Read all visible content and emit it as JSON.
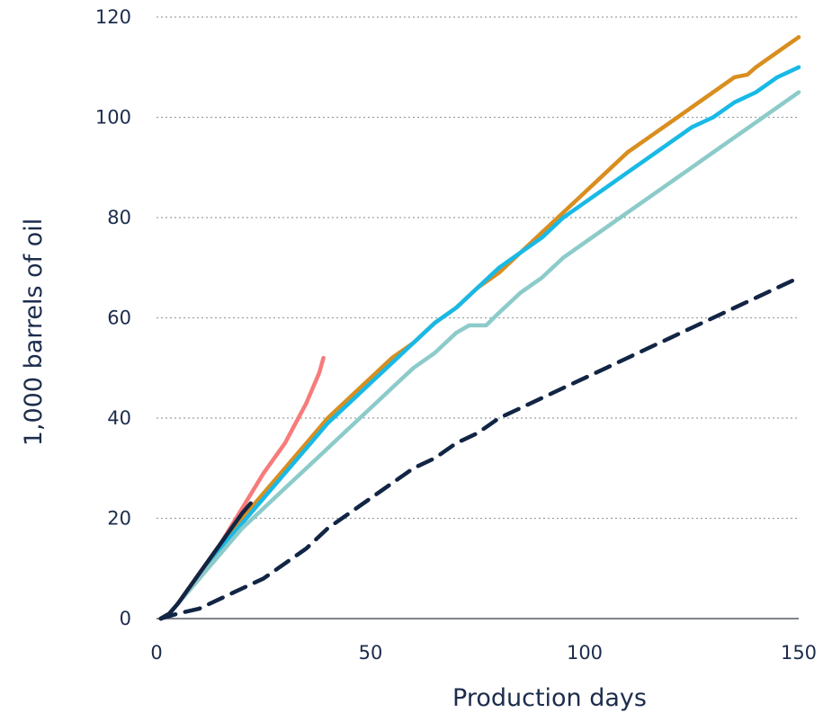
{
  "chart_data": {
    "type": "line",
    "title": "",
    "xlabel": "Production days",
    "ylabel": "1,000 barrels of oil",
    "xlim": [
      0,
      150
    ],
    "ylim": [
      0,
      120
    ],
    "xticks": [
      0,
      50,
      100,
      150
    ],
    "yticks": [
      0,
      20,
      40,
      60,
      80,
      100,
      120
    ],
    "xtick_labels": [
      "0",
      "50",
      "100",
      "150"
    ],
    "ytick_labels": [
      "0",
      "20",
      "40",
      "60",
      "80",
      "100",
      "120"
    ],
    "grid": "horizontal dotted",
    "legend": "none",
    "series": [
      {
        "color": "#d98e1f",
        "style": "solid",
        "points": [
          [
            1,
            0
          ],
          [
            3,
            1
          ],
          [
            5,
            3
          ],
          [
            10,
            9
          ],
          [
            15,
            15
          ],
          [
            20,
            20
          ],
          [
            25,
            25
          ],
          [
            30,
            30
          ],
          [
            35,
            35
          ],
          [
            40,
            40
          ],
          [
            45,
            44
          ],
          [
            50,
            48
          ],
          [
            55,
            52
          ],
          [
            60,
            55
          ],
          [
            65,
            59
          ],
          [
            70,
            62
          ],
          [
            75,
            66
          ],
          [
            80,
            69
          ],
          [
            85,
            73
          ],
          [
            90,
            77
          ],
          [
            95,
            81
          ],
          [
            100,
            85
          ],
          [
            105,
            89
          ],
          [
            110,
            93
          ],
          [
            115,
            96
          ],
          [
            120,
            99
          ],
          [
            125,
            102
          ],
          [
            130,
            105
          ],
          [
            135,
            108
          ],
          [
            138,
            108.5
          ],
          [
            140,
            110
          ],
          [
            145,
            113
          ],
          [
            150,
            116
          ]
        ]
      },
      {
        "color": "#18b9e6",
        "style": "solid",
        "points": [
          [
            1,
            0
          ],
          [
            3,
            1
          ],
          [
            5,
            3
          ],
          [
            10,
            8
          ],
          [
            15,
            14
          ],
          [
            20,
            19
          ],
          [
            25,
            24
          ],
          [
            30,
            29
          ],
          [
            35,
            34
          ],
          [
            40,
            39
          ],
          [
            45,
            43
          ],
          [
            50,
            47
          ],
          [
            55,
            51
          ],
          [
            60,
            55
          ],
          [
            65,
            59
          ],
          [
            70,
            62
          ],
          [
            75,
            66
          ],
          [
            80,
            70
          ],
          [
            85,
            73
          ],
          [
            90,
            76
          ],
          [
            95,
            80
          ],
          [
            100,
            83
          ],
          [
            105,
            86
          ],
          [
            110,
            89
          ],
          [
            115,
            92
          ],
          [
            120,
            95
          ],
          [
            125,
            98
          ],
          [
            130,
            100
          ],
          [
            135,
            103
          ],
          [
            140,
            105
          ],
          [
            145,
            108
          ],
          [
            150,
            110
          ]
        ]
      },
      {
        "color": "#8ccbca",
        "style": "solid",
        "points": [
          [
            1,
            0
          ],
          [
            3,
            1
          ],
          [
            5,
            3
          ],
          [
            10,
            8
          ],
          [
            15,
            13
          ],
          [
            20,
            18
          ],
          [
            25,
            22
          ],
          [
            30,
            26
          ],
          [
            35,
            30
          ],
          [
            40,
            34
          ],
          [
            45,
            38
          ],
          [
            50,
            42
          ],
          [
            55,
            46
          ],
          [
            60,
            50
          ],
          [
            65,
            53
          ],
          [
            70,
            57
          ],
          [
            73,
            58.5
          ],
          [
            77,
            58.5
          ],
          [
            80,
            61
          ],
          [
            85,
            65
          ],
          [
            90,
            68
          ],
          [
            95,
            72
          ],
          [
            100,
            75
          ],
          [
            105,
            78
          ],
          [
            110,
            81
          ],
          [
            115,
            84
          ],
          [
            120,
            87
          ],
          [
            125,
            90
          ],
          [
            130,
            93
          ],
          [
            135,
            96
          ],
          [
            140,
            99
          ],
          [
            145,
            102
          ],
          [
            150,
            105
          ]
        ]
      },
      {
        "color": "#f77b7b",
        "style": "solid",
        "points": [
          [
            1,
            0
          ],
          [
            3,
            1
          ],
          [
            5,
            3
          ],
          [
            10,
            9
          ],
          [
            15,
            15
          ],
          [
            20,
            22
          ],
          [
            25,
            29
          ],
          [
            30,
            35
          ],
          [
            35,
            43
          ],
          [
            38,
            49
          ],
          [
            39,
            52
          ]
        ]
      },
      {
        "color": "#122544",
        "style": "solid",
        "points": [
          [
            1,
            0
          ],
          [
            3,
            1
          ],
          [
            5,
            3
          ],
          [
            10,
            9
          ],
          [
            15,
            15
          ],
          [
            20,
            21
          ],
          [
            22,
            23
          ]
        ]
      },
      {
        "color": "#122544",
        "style": "dashed",
        "points": [
          [
            1,
            0
          ],
          [
            5,
            1
          ],
          [
            10,
            2
          ],
          [
            15,
            4
          ],
          [
            20,
            6
          ],
          [
            25,
            8
          ],
          [
            30,
            11
          ],
          [
            35,
            14
          ],
          [
            40,
            18
          ],
          [
            45,
            21
          ],
          [
            50,
            24
          ],
          [
            55,
            27
          ],
          [
            60,
            30
          ],
          [
            65,
            32
          ],
          [
            70,
            35
          ],
          [
            75,
            37
          ],
          [
            80,
            40
          ],
          [
            85,
            42
          ],
          [
            90,
            44
          ],
          [
            95,
            46
          ],
          [
            100,
            48
          ],
          [
            105,
            50
          ],
          [
            110,
            52
          ],
          [
            115,
            54
          ],
          [
            120,
            56
          ],
          [
            125,
            58
          ],
          [
            130,
            60
          ],
          [
            135,
            62
          ],
          [
            140,
            64
          ],
          [
            145,
            66
          ],
          [
            150,
            68
          ]
        ]
      }
    ]
  }
}
